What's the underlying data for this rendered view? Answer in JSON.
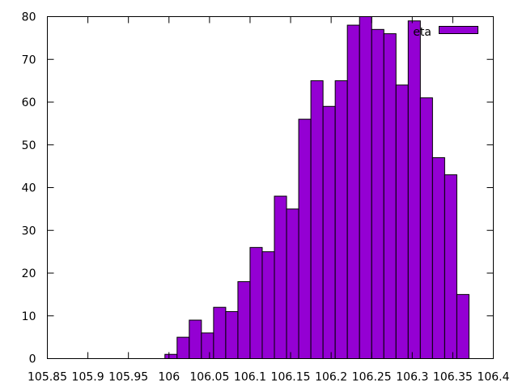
{
  "chart_data": {
    "type": "bar",
    "title": "",
    "xlabel": "",
    "ylabel": "",
    "xlim": [
      105.85,
      106.4
    ],
    "ylim": [
      0,
      80
    ],
    "x_ticks": [
      105.85,
      105.9,
      105.95,
      106,
      106.05,
      106.1,
      106.15,
      106.2,
      106.25,
      106.3,
      106.35,
      106.4
    ],
    "x_tick_labels": [
      "105.85",
      "105.9",
      "105.95",
      "106",
      "106.05",
      "106.1",
      "106.15",
      "106.2",
      "106.25",
      "106.3",
      "106.35",
      "106.4"
    ],
    "y_ticks": [
      0,
      10,
      20,
      30,
      40,
      50,
      60,
      70,
      80
    ],
    "y_tick_labels": [
      "0",
      "10",
      "20",
      "30",
      "40",
      "50",
      "60",
      "70",
      "80"
    ],
    "grid": false,
    "legend_position": "top-right",
    "bar_color": "#9400d3",
    "series": [
      {
        "name": "eta",
        "bins": [
          {
            "x0": 105.995,
            "x1": 106.01,
            "count": 1
          },
          {
            "x0": 106.01,
            "x1": 106.025,
            "count": 5
          },
          {
            "x0": 106.025,
            "x1": 106.04,
            "count": 9
          },
          {
            "x0": 106.04,
            "x1": 106.055,
            "count": 6
          },
          {
            "x0": 106.055,
            "x1": 106.07,
            "count": 12
          },
          {
            "x0": 106.07,
            "x1": 106.085,
            "count": 11
          },
          {
            "x0": 106.085,
            "x1": 106.1,
            "count": 18
          },
          {
            "x0": 106.1,
            "x1": 106.115,
            "count": 26
          },
          {
            "x0": 106.115,
            "x1": 106.13,
            "count": 25
          },
          {
            "x0": 106.13,
            "x1": 106.145,
            "count": 38
          },
          {
            "x0": 106.145,
            "x1": 106.16,
            "count": 35
          },
          {
            "x0": 106.16,
            "x1": 106.175,
            "count": 56
          },
          {
            "x0": 106.175,
            "x1": 106.19,
            "count": 65
          },
          {
            "x0": 106.19,
            "x1": 106.205,
            "count": 59
          },
          {
            "x0": 106.205,
            "x1": 106.22,
            "count": 65
          },
          {
            "x0": 106.22,
            "x1": 106.235,
            "count": 78
          },
          {
            "x0": 106.235,
            "x1": 106.25,
            "count": 80
          },
          {
            "x0": 106.25,
            "x1": 106.265,
            "count": 77
          },
          {
            "x0": 106.265,
            "x1": 106.28,
            "count": 76
          },
          {
            "x0": 106.28,
            "x1": 106.295,
            "count": 64
          },
          {
            "x0": 106.295,
            "x1": 106.31,
            "count": 79
          },
          {
            "x0": 106.31,
            "x1": 106.325,
            "count": 61
          },
          {
            "x0": 106.325,
            "x1": 106.34,
            "count": 47
          },
          {
            "x0": 106.34,
            "x1": 106.355,
            "count": 43
          },
          {
            "x0": 106.355,
            "x1": 106.37,
            "count": 15
          }
        ]
      }
    ]
  }
}
